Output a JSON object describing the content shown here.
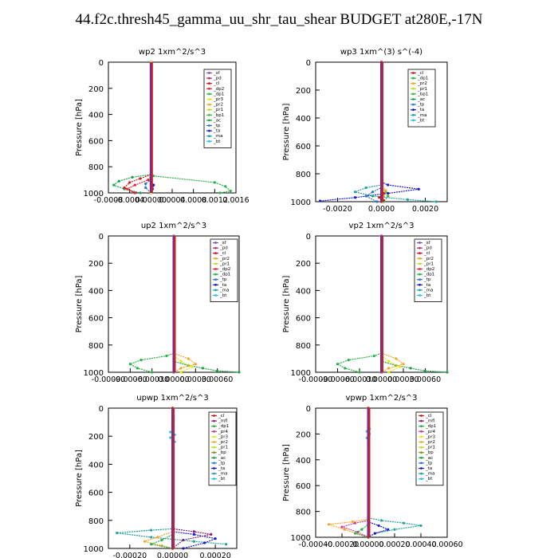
{
  "title": "44.f2c.thresh45_gamma_uu_shr_tau_shear  BUDGET at280E,-17N",
  "colors": {
    "sf": "#7b4fb7",
    "pd": "#a4307a",
    "cl": "#d21a1a",
    "dp2": "#e4233a",
    "dp1": "#27b34a",
    "pr1": "#b9e01b",
    "pr2": "#f5a623",
    "pr3": "#e8e31a",
    "pr4": "#c43c9c",
    "bp1": "#3db54a",
    "ac": "#1aa34a",
    "tp": "#2f76d2",
    "ta": "#1a1ad2",
    "ma": "#20a0a0",
    "bt": "#22c4e0",
    "mfl": "#8a2070",
    "bp": "#7a9a20",
    "pr": "#a64ab4"
  },
  "chart_data": [
    {
      "type": "line",
      "title": "wp2    1xm^2/s^3",
      "ylabel": "Pressure  [hPa]",
      "xlim": [
        -0.0008,
        0.0016
      ],
      "ylim": [
        1000,
        0
      ],
      "xticks": [
        "-0.0008",
        "-0.0004",
        "0.00000",
        "0.0004",
        "0.0008",
        "0.0012",
        "0.0016"
      ],
      "yticks": [
        "0",
        "200",
        "400",
        "600",
        "800",
        "1000"
      ],
      "legend": [
        "_sf",
        "_pd",
        "_cl",
        "_dp2",
        "_dp1",
        "_pr3",
        "_pr2",
        "_pr1",
        "_bp1",
        "_ac",
        "_tp",
        "_ta",
        "_ma",
        "_bt"
      ],
      "series": [
        {
          "key": "dp1",
          "x": [
            0,
            0,
            5e-05,
            0.0012,
            0.0014,
            0.0015,
            0.0013
          ],
          "y": [
            0,
            860,
            870,
            920,
            950,
            985,
            1000
          ]
        },
        {
          "key": "ac",
          "x": [
            0,
            0,
            -0.00035,
            -0.0006,
            -0.0007,
            -0.0005,
            -0.0002
          ],
          "y": [
            0,
            860,
            880,
            910,
            940,
            970,
            1000
          ]
        },
        {
          "key": "cl",
          "x": [
            0,
            0,
            -0.0002,
            -0.0004,
            -0.0005,
            -0.0003
          ],
          "y": [
            0,
            860,
            890,
            920,
            960,
            1000
          ]
        },
        {
          "key": "dp2",
          "x": [
            0,
            0,
            -5e-05,
            -0.0003,
            -0.00045,
            -0.0003
          ],
          "y": [
            0,
            870,
            900,
            940,
            970,
            1000
          ]
        },
        {
          "key": "tp",
          "x": [
            0,
            0,
            -0.0001,
            -0.0001,
            0
          ],
          "y": [
            0,
            900,
            930,
            960,
            1000
          ]
        },
        {
          "key": "ta",
          "x": [
            0,
            0,
            5e-05,
            3e-05,
            0
          ],
          "y": [
            0,
            900,
            940,
            970,
            1000
          ]
        },
        {
          "key": "sf",
          "x": [
            0,
            0,
            0
          ],
          "y": [
            0,
            900,
            1000
          ]
        },
        {
          "key": "pd",
          "x": [
            0,
            0,
            0
          ],
          "y": [
            0,
            900,
            1000
          ]
        },
        {
          "key": "pr3",
          "x": [
            0,
            0,
            0
          ],
          "y": [
            0,
            900,
            1000
          ]
        }
      ]
    },
    {
      "type": "line",
      "title": "wp3    1xm^(3) s^(-4)",
      "ylabel": "Pressure  [hPa]",
      "xlim": [
        -0.003,
        0.003
      ],
      "ylim": [
        1000,
        0
      ],
      "xticks": [
        "-0.0020",
        "0.0000",
        "0.0020"
      ],
      "yticks": [
        "0",
        "200",
        "400",
        "600",
        "800",
        "1000"
      ],
      "legend": [
        "_cl",
        "_dp1",
        "_pr2",
        "_pr1",
        "_bp1",
        "_ac",
        "_tp",
        "_ta",
        "_ma",
        "_bt"
      ],
      "series": [
        {
          "key": "ta",
          "x": [
            0,
            0,
            0.0003,
            0.0017,
            0.0003,
            -0.0012,
            -0.0028
          ],
          "y": [
            0,
            860,
            880,
            910,
            940,
            970,
            995
          ]
        },
        {
          "key": "ma",
          "x": [
            0,
            0,
            -0.0007,
            -0.0012,
            -0.0004,
            0.0012,
            0.0025
          ],
          "y": [
            0,
            880,
            900,
            930,
            960,
            985,
            1000
          ]
        },
        {
          "key": "tp",
          "x": [
            0,
            0,
            -0.0004,
            -0.0007,
            -0.0002
          ],
          "y": [
            0,
            900,
            930,
            960,
            1000
          ]
        },
        {
          "key": "bp1",
          "x": [
            0,
            0,
            0.0002,
            0.0003,
            0.0001
          ],
          "y": [
            0,
            900,
            930,
            960,
            1000
          ]
        },
        {
          "key": "pr2",
          "x": [
            0,
            0,
            0.0002,
            0.0001,
            0
          ],
          "y": [
            0,
            880,
            920,
            960,
            1000
          ]
        },
        {
          "key": "cl",
          "x": [
            0,
            0,
            0.0001,
            -0.0001,
            0.0001,
            0
          ],
          "y": [
            0,
            900,
            940,
            970,
            990,
            1000
          ]
        }
      ]
    },
    {
      "type": "line",
      "title": "up2    1xm^2/s^3",
      "ylabel": "Pressure  [hPa]",
      "xlim": [
        -0.0009,
        0.0009
      ],
      "ylim": [
        1000,
        0
      ],
      "xticks": [
        "-0.00090",
        "-0.00060",
        "-0.00030",
        "0.00000",
        "0.00030",
        "0.00060"
      ],
      "yticks": [
        "0",
        "200",
        "400",
        "600",
        "800",
        "1000"
      ],
      "legend": [
        "_sf",
        "_pd",
        "_cl",
        "_pr2",
        "_pr1",
        "_dp2",
        "_dp1",
        "_tp",
        "_ta",
        "_ma",
        "_bt"
      ],
      "series": [
        {
          "key": "dp1",
          "x": [
            0,
            0,
            -0.0001,
            -0.00045,
            -0.0006,
            -0.0005,
            -0.0003
          ],
          "y": [
            0,
            860,
            880,
            910,
            940,
            970,
            1000
          ]
        },
        {
          "key": "ac",
          "x": [
            0,
            0,
            0.0002,
            0.0004,
            0.0006,
            0.0009
          ],
          "y": [
            0,
            920,
            950,
            970,
            990,
            1000
          ]
        },
        {
          "key": "pr2",
          "x": [
            0,
            0,
            0.0002,
            0.0003,
            0.0001,
            0
          ],
          "y": [
            0,
            860,
            900,
            940,
            970,
            1000
          ]
        },
        {
          "key": "pr3",
          "x": [
            0,
            0,
            0.0001,
            0.00025,
            0.0001
          ],
          "y": [
            0,
            880,
            920,
            960,
            1000
          ]
        },
        {
          "key": "cl",
          "x": [
            0,
            0,
            0
          ],
          "y": [
            0,
            900,
            1000
          ]
        },
        {
          "key": "sf",
          "x": [
            0,
            0,
            0
          ],
          "y": [
            0,
            900,
            1000
          ]
        }
      ]
    },
    {
      "type": "line",
      "title": "vp2    1xm^2/s^3",
      "ylabel": "Pressure  [hPa]",
      "xlim": [
        -0.0009,
        0.0009
      ],
      "ylim": [
        1000,
        0
      ],
      "xticks": [
        "-0.00090",
        "-0.00060",
        "-0.00030",
        "0.00000",
        "0.00030",
        "0.00060"
      ],
      "yticks": [
        "0",
        "200",
        "400",
        "600",
        "800",
        "1000"
      ],
      "legend": [
        "_sf",
        "_pd",
        "_cl",
        "_pr2",
        "_pr1",
        "_dp2",
        "_dp1",
        "_tp",
        "_ta",
        "_ma",
        "_bt"
      ],
      "series": [
        {
          "key": "dp1",
          "x": [
            0,
            0,
            -0.0001,
            -0.00045,
            -0.0006,
            -0.0005,
            -0.0003
          ],
          "y": [
            0,
            860,
            880,
            910,
            940,
            970,
            1000
          ]
        },
        {
          "key": "ac",
          "x": [
            0,
            0,
            0.0002,
            0.0004,
            0.0006,
            0.0009
          ],
          "y": [
            0,
            920,
            950,
            970,
            990,
            1000
          ]
        },
        {
          "key": "pr2",
          "x": [
            0,
            0,
            0.0002,
            0.0003,
            0.0001,
            0
          ],
          "y": [
            0,
            860,
            900,
            940,
            970,
            1000
          ]
        },
        {
          "key": "pr3",
          "x": [
            0,
            0,
            0.0001,
            0.00025,
            0.0001
          ],
          "y": [
            0,
            880,
            920,
            960,
            1000
          ]
        },
        {
          "key": "cl",
          "x": [
            0,
            0,
            0
          ],
          "y": [
            0,
            900,
            1000
          ]
        },
        {
          "key": "sf",
          "x": [
            0,
            0,
            0
          ],
          "y": [
            0,
            900,
            1000
          ]
        }
      ]
    },
    {
      "type": "line",
      "title": "upwp    1xm^2/s^3",
      "ylabel": "Pressure  [hPa]",
      "xlim": [
        -0.0003,
        0.0003
      ],
      "ylim": [
        1000,
        0
      ],
      "xticks": [
        "-0.00020",
        "0.00000",
        "0.00020"
      ],
      "yticks": [
        "0",
        "200",
        "400",
        "600",
        "800",
        "1000"
      ],
      "legend": [
        "_cl",
        "_mfl",
        "_dp1",
        "_pr4",
        "_pr3",
        "_pr2",
        "_pr1",
        "_bp",
        "_ac",
        "_tp",
        "_ta",
        "_ma",
        "_bt"
      ],
      "series": [
        {
          "key": "ma",
          "x": [
            0,
            0,
            -0.0001,
            -0.00026,
            -0.0001,
            0.0001,
            0.00025
          ],
          "y": [
            0,
            860,
            870,
            890,
            920,
            950,
            970
          ]
        },
        {
          "key": "ta",
          "x": [
            0,
            0,
            0.0001,
            0.0002,
            0.00015,
            5e-05
          ],
          "y": [
            0,
            880,
            900,
            930,
            960,
            1000
          ]
        },
        {
          "key": "mfl",
          "x": [
            0,
            0,
            0.0001,
            0.00018,
            5e-05,
            0
          ],
          "y": [
            0,
            860,
            880,
            900,
            940,
            1000
          ]
        },
        {
          "key": "pr2",
          "x": [
            0,
            0,
            -7e-05,
            -0.00013,
            -5e-05,
            0
          ],
          "y": [
            0,
            880,
            920,
            950,
            980,
            1000
          ]
        },
        {
          "key": "dp1",
          "x": [
            0,
            0,
            -5e-05,
            -0.0001,
            0
          ],
          "y": [
            0,
            900,
            940,
            970,
            1000
          ]
        },
        {
          "key": "cl",
          "x": [
            0,
            0,
            0
          ],
          "y": [
            0,
            900,
            1000
          ]
        },
        {
          "key": "bt",
          "x": [
            -1e-05,
            1e-05,
            -1e-05,
            1e-05,
            0
          ],
          "y": [
            170,
            190,
            210,
            240,
            260
          ]
        }
      ]
    },
    {
      "type": "line",
      "title": "vpwp    1xm^2/s^3",
      "ylabel": "Pressure  [hPa]",
      "xlim": [
        -0.0004,
        0.0006
      ],
      "ylim": [
        1000,
        0
      ],
      "xticks": [
        "-0.00040",
        "-0.00020",
        "0.00000",
        "0.00020",
        "0.00040",
        "0.00060"
      ],
      "yticks": [
        "0",
        "200",
        "400",
        "600",
        "800",
        "1000"
      ],
      "legend": [
        "_cl",
        "_mfl",
        "_dp1",
        "_pr4",
        "_pr3",
        "_pr2",
        "_pr1",
        "_bp",
        "_ac",
        "_tp",
        "_ta",
        "_ma",
        "_bt"
      ],
      "series": [
        {
          "key": "ma",
          "x": [
            0,
            0,
            0.0001,
            0.00027,
            0.0004,
            0.0002,
            5e-05
          ],
          "y": [
            0,
            850,
            870,
            890,
            910,
            940,
            970
          ]
        },
        {
          "key": "pr2",
          "x": [
            0,
            0,
            -0.00012,
            -0.0003,
            -0.00018,
            0
          ],
          "y": [
            0,
            860,
            880,
            900,
            940,
            1000
          ]
        },
        {
          "key": "pr4",
          "x": [
            0,
            0,
            -0.0001,
            -0.0002,
            -8e-05,
            0
          ],
          "y": [
            0,
            870,
            890,
            920,
            960,
            1000
          ]
        },
        {
          "key": "ta",
          "x": [
            0,
            0,
            8e-05,
            0.00015,
            5e-05,
            0
          ],
          "y": [
            0,
            880,
            910,
            940,
            970,
            1000
          ]
        },
        {
          "key": "dp1",
          "x": [
            0,
            0,
            -5e-05,
            -0.0001,
            0
          ],
          "y": [
            0,
            900,
            940,
            970,
            1000
          ]
        },
        {
          "key": "cl",
          "x": [
            0,
            0,
            0
          ],
          "y": [
            0,
            900,
            1000
          ]
        },
        {
          "key": "bt",
          "x": [
            1e-05,
            -1e-05,
            1e-05,
            -1e-05,
            0
          ],
          "y": [
            160,
            180,
            200,
            230,
            250
          ]
        }
      ]
    }
  ]
}
